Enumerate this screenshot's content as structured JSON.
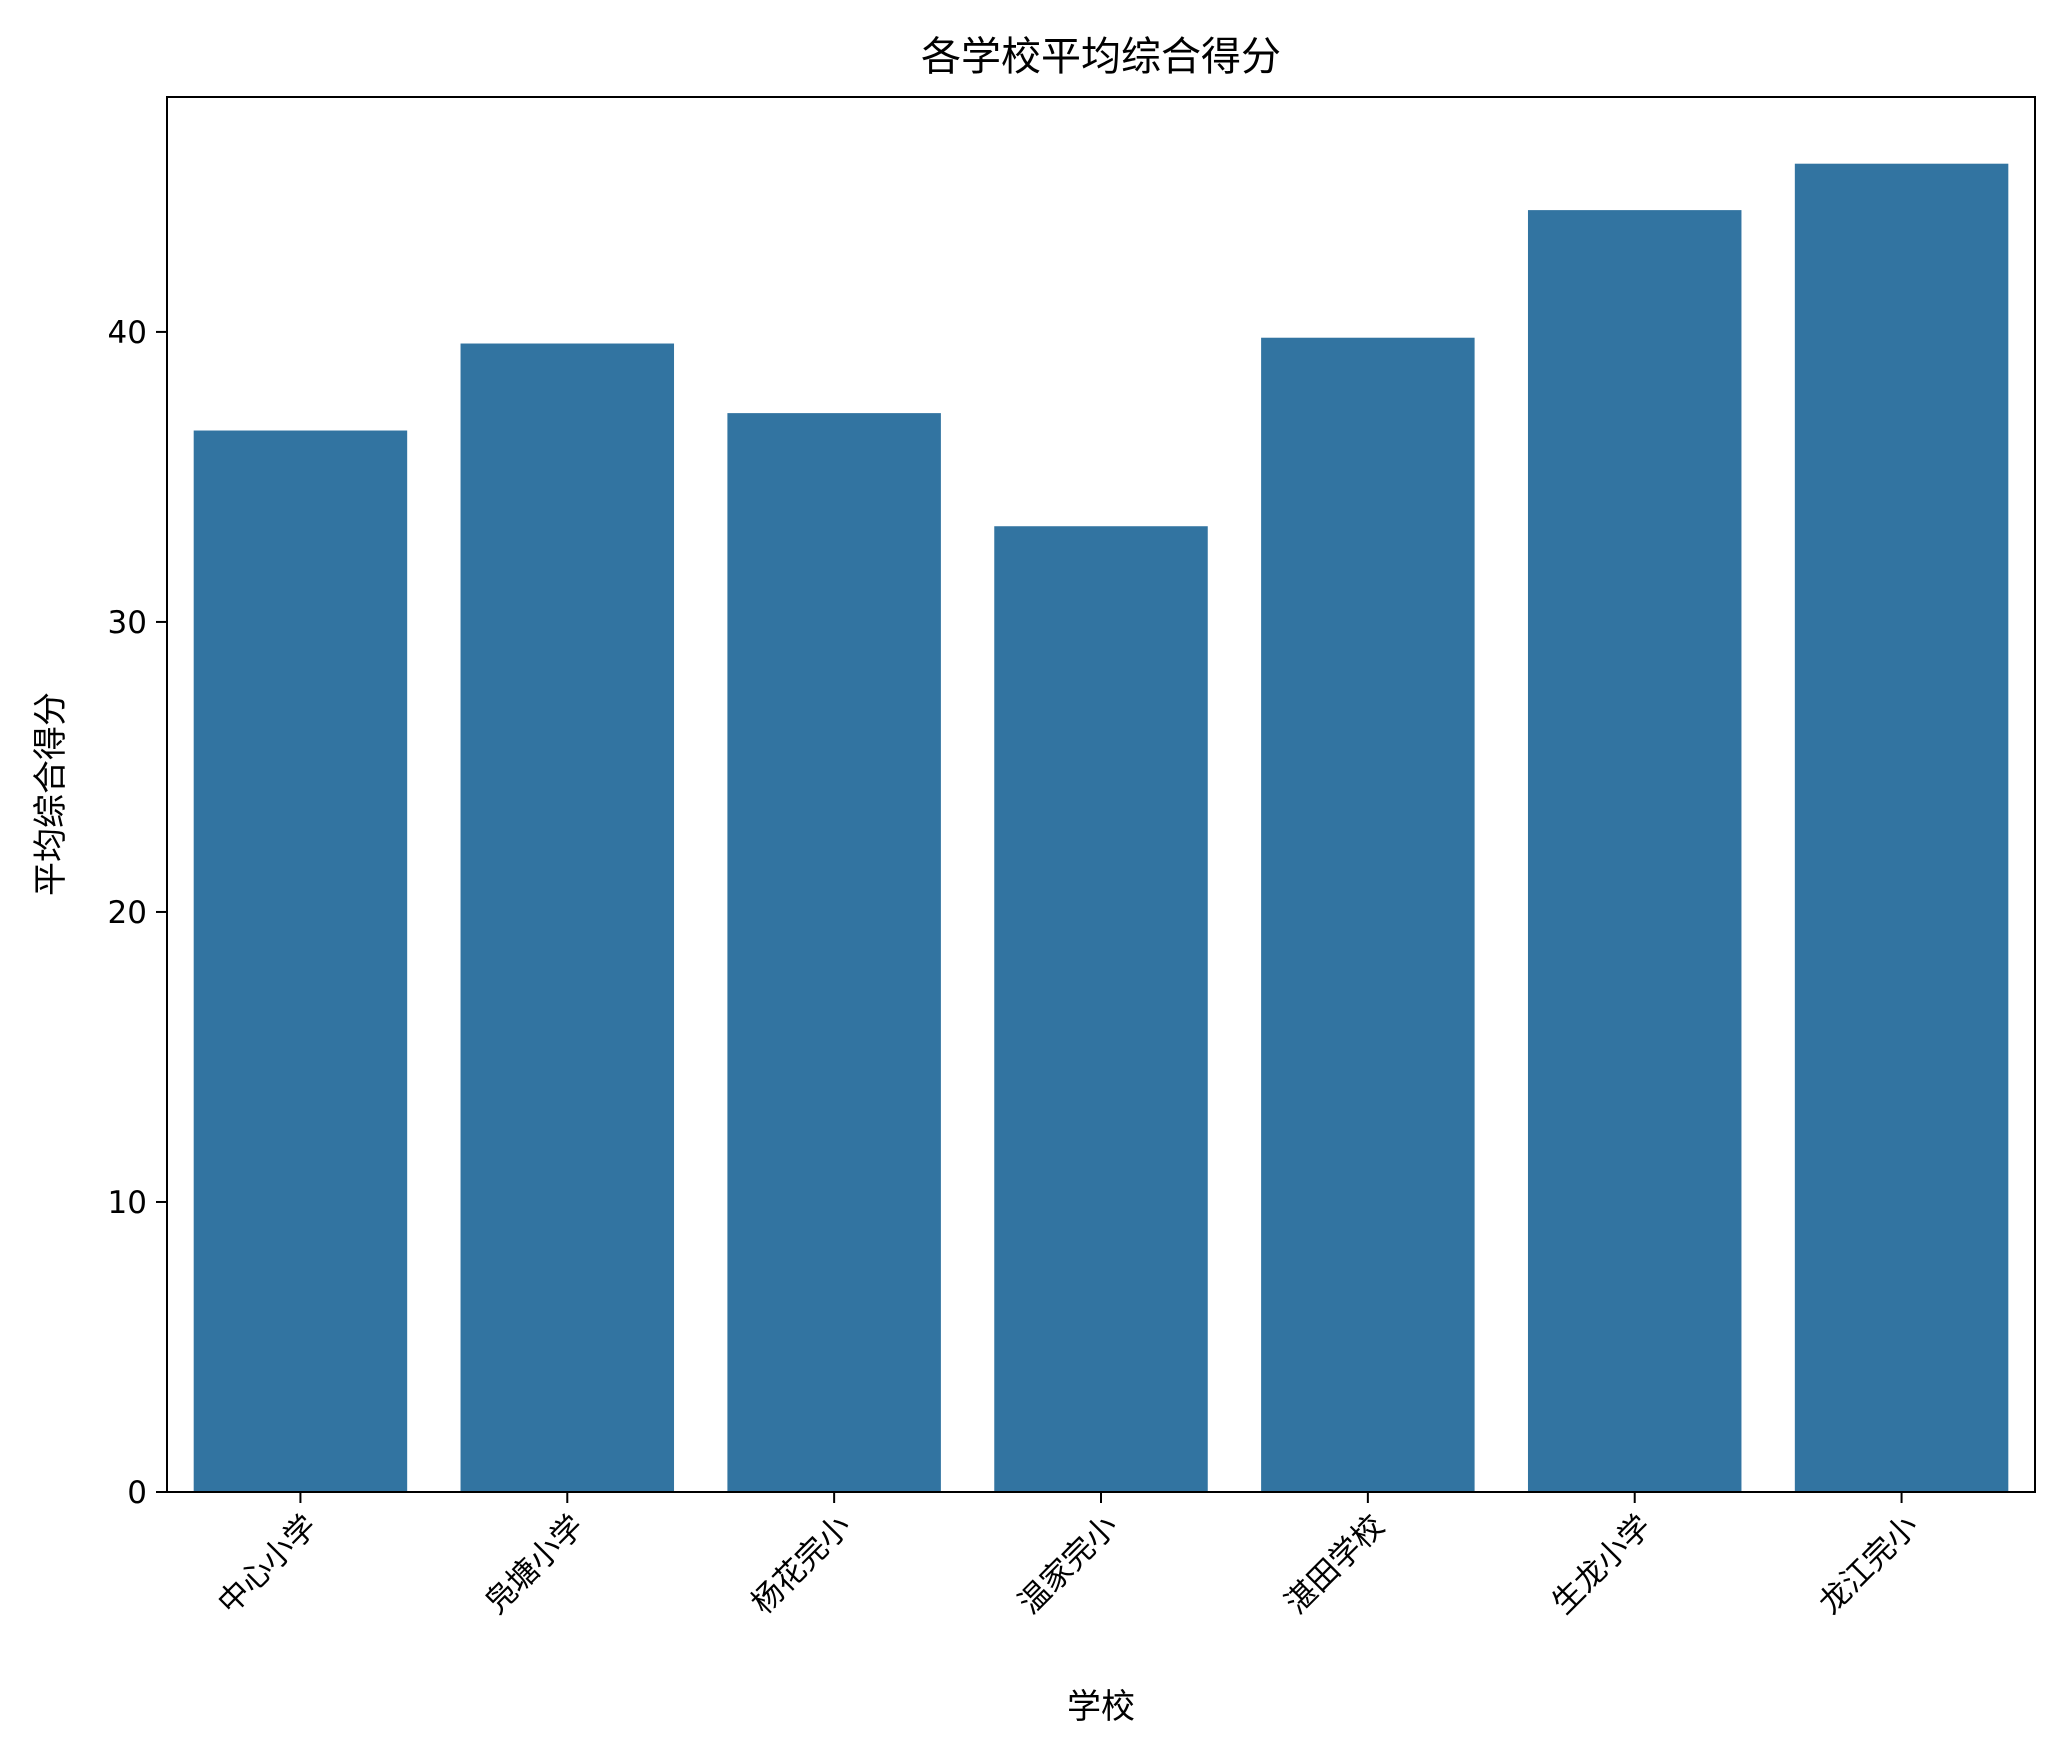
{
  "chart_data": {
    "type": "bar",
    "title": "各学校平均综合得分",
    "xlabel": "学校",
    "ylabel": "平均综合得分",
    "categories": [
      "中心小学",
      "凫塘小学",
      "杨花完小",
      "温家完小",
      "湛田学校",
      "生龙小学",
      "龙江完小"
    ],
    "values": [
      36.6,
      39.6,
      37.2,
      33.3,
      39.8,
      44.2,
      45.8
    ],
    "ylim": [
      0,
      48.1
    ],
    "yticks": [
      0,
      10,
      20,
      30,
      40
    ],
    "grid": false,
    "legend": "none",
    "bar_color": "#3274a1"
  }
}
